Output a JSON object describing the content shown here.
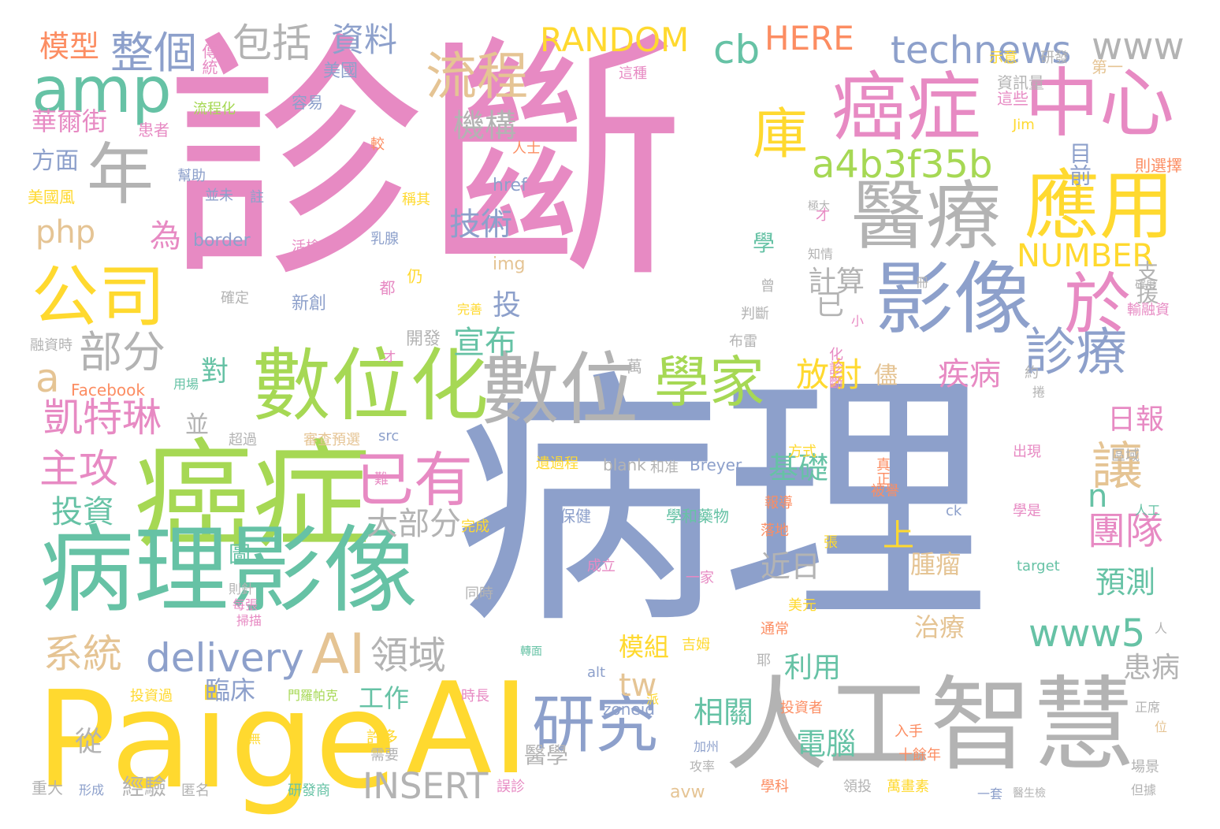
{
  "palette": {
    "pink": "#e78ac3",
    "blue": "#8da0cb",
    "green": "#66c2a5",
    "yellow": "#ffd92f",
    "gray": "#b3b3b3",
    "tan": "#e5c494",
    "lime": "#a6d854",
    "orange": "#fc8d62"
  },
  "words": [
    {
      "text": "診斷",
      "color": "pink"
    },
    {
      "text": "病理",
      "color": "blue"
    },
    {
      "text": "Paige",
      "color": "yellow"
    },
    {
      "text": "AI",
      "color": "yellow"
    },
    {
      "text": "人工智慧",
      "color": "gray"
    },
    {
      "text": "癌症",
      "color": "lime"
    },
    {
      "text": "病理影像",
      "color": "green"
    },
    {
      "text": "數位化",
      "color": "lime"
    },
    {
      "text": "數位",
      "color": "gray"
    },
    {
      "text": "影像",
      "color": "blue"
    },
    {
      "text": "醫療",
      "color": "gray"
    },
    {
      "text": "應用",
      "color": "yellow"
    },
    {
      "text": "中心",
      "color": "pink"
    },
    {
      "text": "癌症",
      "color": "pink"
    },
    {
      "text": "公司",
      "color": "yellow"
    },
    {
      "text": "年",
      "color": "gray"
    },
    {
      "text": "amp",
      "color": "green"
    },
    {
      "text": "研究",
      "color": "blue"
    },
    {
      "text": "學家",
      "color": "lime"
    },
    {
      "text": "已有",
      "color": "pink"
    },
    {
      "text": "於",
      "color": "pink"
    },
    {
      "text": "庫",
      "color": "yellow"
    },
    {
      "text": "流程",
      "color": "tan"
    },
    {
      "text": "AI",
      "color": "tan"
    },
    {
      "text": "診療",
      "color": "blue"
    },
    {
      "text": "a4b3f35b",
      "color": "lime"
    },
    {
      "text": "整個",
      "color": "blue"
    },
    {
      "text": "包括",
      "color": "gray"
    },
    {
      "text": "凱特琳",
      "color": "pink"
    },
    {
      "text": "主攻",
      "color": "pink"
    },
    {
      "text": "部分",
      "color": "gray"
    },
    {
      "text": "technews",
      "color": "blue"
    },
    {
      "text": "www",
      "color": "gray"
    },
    {
      "text": "RANDOM",
      "color": "yellow"
    },
    {
      "text": "cb",
      "color": "green"
    },
    {
      "text": "HERE",
      "color": "orange"
    },
    {
      "text": "模型",
      "color": "orange"
    },
    {
      "text": "資料",
      "color": "blue"
    },
    {
      "text": "php",
      "color": "tan"
    },
    {
      "text": "a",
      "color": "tan"
    },
    {
      "text": "系統",
      "color": "tan"
    },
    {
      "text": "delivery",
      "color": "blue"
    },
    {
      "text": "領域",
      "color": "gray"
    },
    {
      "text": "INSERT",
      "color": "gray"
    },
    {
      "text": "www5",
      "color": "green"
    },
    {
      "text": "NUMBER",
      "color": "yellow"
    },
    {
      "text": "讓",
      "color": "tan"
    },
    {
      "text": "團隊",
      "color": "pink"
    },
    {
      "text": "放射",
      "color": "yellow"
    },
    {
      "text": "疾病",
      "color": "pink"
    },
    {
      "text": "機構",
      "color": "gray"
    },
    {
      "text": "技術",
      "color": "blue"
    },
    {
      "text": "宣布",
      "color": "green"
    },
    {
      "text": "投資",
      "color": "green"
    },
    {
      "text": "大部分",
      "color": "gray"
    },
    {
      "text": "華爾街",
      "color": "pink"
    },
    {
      "text": "方面",
      "color": "blue"
    },
    {
      "text": "為",
      "color": "pink"
    },
    {
      "text": "border",
      "color": "blue"
    },
    {
      "text": "工作",
      "color": "green"
    },
    {
      "text": "臨床",
      "color": "blue"
    },
    {
      "text": "經驗",
      "color": "gray"
    },
    {
      "text": "從",
      "color": "gray"
    },
    {
      "text": "相關",
      "color": "green"
    },
    {
      "text": "電腦",
      "color": "green"
    },
    {
      "text": "基礎",
      "color": "green"
    },
    {
      "text": "近日",
      "color": "gray"
    },
    {
      "text": "預測",
      "color": "green"
    },
    {
      "text": "日報",
      "color": "pink"
    },
    {
      "text": "計算",
      "color": "gray"
    },
    {
      "text": "模組",
      "color": "yellow"
    },
    {
      "text": "利用",
      "color": "green"
    },
    {
      "text": "治療",
      "color": "tan"
    },
    {
      "text": "腫瘤",
      "color": "tan"
    },
    {
      "text": "患病",
      "color": "gray"
    },
    {
      "text": "醫學",
      "color": "gray"
    },
    {
      "text": "目前",
      "color": "blue"
    },
    {
      "text": "支援",
      "color": "gray"
    },
    {
      "text": "n",
      "color": "green"
    },
    {
      "text": "上",
      "color": "yellow"
    },
    {
      "text": "圖",
      "color": "green"
    },
    {
      "text": "已",
      "color": "gray"
    },
    {
      "text": "投",
      "color": "blue"
    },
    {
      "text": "學",
      "color": "green"
    },
    {
      "text": "對",
      "color": "green"
    },
    {
      "text": "並",
      "color": "gray"
    },
    {
      "text": "tw",
      "color": "tan"
    },
    {
      "text": "儘",
      "color": "tan"
    },
    {
      "text": "新創",
      "color": "blue"
    },
    {
      "text": "開發",
      "color": "gray"
    },
    {
      "text": "img",
      "color": "tan"
    },
    {
      "text": "href",
      "color": "blue"
    },
    {
      "text": "則選擇",
      "color": "orange"
    },
    {
      "text": "第一",
      "color": "tan"
    },
    {
      "text": "資訊量",
      "color": "gray"
    },
    {
      "text": "Jim",
      "color": "yellow"
    },
    {
      "text": "這些",
      "color": "pink"
    },
    {
      "text": "研發",
      "color": "gray"
    },
    {
      "text": "示意",
      "color": "yellow"
    },
    {
      "text": "美國",
      "color": "blue"
    },
    {
      "text": "傳統",
      "color": "pink"
    },
    {
      "text": "容易",
      "color": "blue"
    },
    {
      "text": "流程化",
      "color": "lime"
    },
    {
      "text": "患者",
      "color": "pink"
    },
    {
      "text": "人士",
      "color": "orange"
    },
    {
      "text": "較",
      "color": "orange"
    },
    {
      "text": "幫助",
      "color": "blue"
    },
    {
      "text": "美國風",
      "color": "yellow"
    },
    {
      "text": "並未",
      "color": "blue"
    },
    {
      "text": "註",
      "color": "blue"
    },
    {
      "text": "稱其",
      "color": "yellow"
    },
    {
      "text": "這種",
      "color": "pink"
    },
    {
      "text": "活檢",
      "color": "pink"
    },
    {
      "text": "乳腺",
      "color": "blue"
    },
    {
      "text": "仍",
      "color": "yellow"
    },
    {
      "text": "都",
      "color": "pink"
    },
    {
      "text": "確定",
      "color": "gray"
    },
    {
      "text": "完善",
      "color": "yellow"
    },
    {
      "text": "曾",
      "color": "gray"
    },
    {
      "text": "判斷",
      "color": "gray"
    },
    {
      "text": "布雷",
      "color": "gray"
    },
    {
      "text": "輸融資",
      "color": "pink"
    },
    {
      "text": "融資時",
      "color": "gray"
    },
    {
      "text": "才",
      "color": "pink"
    },
    {
      "text": "小",
      "color": "pink"
    },
    {
      "text": "化診斷",
      "color": "pink"
    },
    {
      "text": "萬",
      "color": "gray"
    },
    {
      "text": "約",
      "color": "gray"
    },
    {
      "text": "Facebook",
      "color": "orange"
    },
    {
      "text": "用場",
      "color": "green"
    },
    {
      "text": "超過",
      "color": "gray"
    },
    {
      "text": "審查預選",
      "color": "tan"
    },
    {
      "text": "src",
      "color": "blue"
    },
    {
      "text": "捲",
      "color": "gray"
    },
    {
      "text": "blank",
      "color": "gray"
    },
    {
      "text": "和准",
      "color": "gray"
    },
    {
      "text": "Breyer",
      "color": "blue"
    },
    {
      "text": "遺過程",
      "color": "yellow"
    },
    {
      "text": "方式",
      "color": "yellow"
    },
    {
      "text": "出現",
      "color": "pink"
    },
    {
      "text": "區域",
      "color": "gray"
    },
    {
      "text": "真正",
      "color": "orange"
    },
    {
      "text": "被譽",
      "color": "orange"
    },
    {
      "text": "報導",
      "color": "orange"
    },
    {
      "text": "落地",
      "color": "orange"
    },
    {
      "text": "ck",
      "color": "blue"
    },
    {
      "text": "學是",
      "color": "pink"
    },
    {
      "text": "人工",
      "color": "green"
    },
    {
      "text": "保健",
      "color": "blue"
    },
    {
      "text": "學和藥物",
      "color": "green"
    },
    {
      "text": "完成",
      "color": "yellow"
    },
    {
      "text": "成立",
      "color": "pink"
    },
    {
      "text": "張",
      "color": "yellow"
    },
    {
      "text": "一家",
      "color": "pink"
    },
    {
      "text": "target",
      "color": "green"
    },
    {
      "text": "則針",
      "color": "gray"
    },
    {
      "text": "同時",
      "color": "gray"
    },
    {
      "text": "每張",
      "color": "pink"
    },
    {
      "text": "美元",
      "color": "yellow"
    },
    {
      "text": "通常",
      "color": "orange"
    },
    {
      "text": "吉姆",
      "color": "yellow"
    },
    {
      "text": "掃描",
      "color": "pink"
    },
    {
      "text": "耶",
      "color": "gray"
    },
    {
      "text": "人",
      "color": "gray"
    },
    {
      "text": "alt",
      "color": "blue"
    },
    {
      "text": "派",
      "color": "yellow"
    },
    {
      "text": "時長",
      "color": "pink"
    },
    {
      "text": "zoneid",
      "color": "blue"
    },
    {
      "text": "投資過",
      "color": "yellow"
    },
    {
      "text": "門羅帕克",
      "color": "lime"
    },
    {
      "text": "許多",
      "color": "yellow"
    },
    {
      "text": "無",
      "color": "yellow"
    },
    {
      "text": "需要",
      "color": "gray"
    },
    {
      "text": "加州",
      "color": "blue"
    },
    {
      "text": "投資者",
      "color": "orange"
    },
    {
      "text": "入手",
      "color": "orange"
    },
    {
      "text": "十餘年",
      "color": "orange"
    },
    {
      "text": "正席",
      "color": "gray"
    },
    {
      "text": "位",
      "color": "tan"
    },
    {
      "text": "場景",
      "color": "gray"
    },
    {
      "text": "但據",
      "color": "gray"
    },
    {
      "text": "重大",
      "color": "gray"
    },
    {
      "text": "形成",
      "color": "blue"
    },
    {
      "text": "匿名",
      "color": "gray"
    },
    {
      "text": "研發商",
      "color": "green"
    },
    {
      "text": "誤診",
      "color": "pink"
    },
    {
      "text": "avw",
      "color": "tan"
    },
    {
      "text": "攻率",
      "color": "gray"
    },
    {
      "text": "學科",
      "color": "orange"
    },
    {
      "text": "領投",
      "color": "gray"
    },
    {
      "text": "萬畫素",
      "color": "yellow"
    },
    {
      "text": "一套",
      "color": "blue"
    },
    {
      "text": "醫生檢",
      "color": "gray"
    },
    {
      "text": "極大",
      "color": "gray"
    },
    {
      "text": "知情",
      "color": "gray"
    },
    {
      "text": "冊",
      "color": "gray"
    },
    {
      "text": "確度",
      "color": "gray"
    },
    {
      "text": "難",
      "color": "pink"
    },
    {
      "text": "轉面",
      "color": "green"
    },
    {
      "text": "オ",
      "color": "pink"
    }
  ]
}
